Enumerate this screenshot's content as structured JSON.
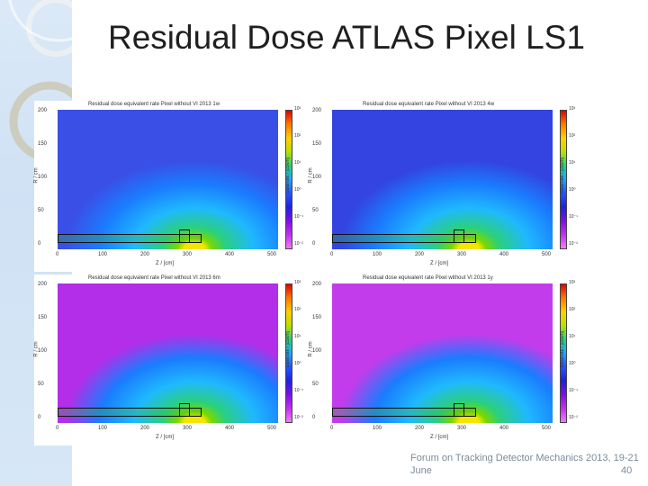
{
  "slide": {
    "title": "Residual Dose ATLAS Pixel LS1",
    "footer": "Forum on Tracking Detector Mechanics 2013, 19-21 June",
    "page_number": "40"
  },
  "plots": [
    {
      "title": "Residual dose equivalent rate Pixel without VI 2013 1w",
      "bg": "#3a4fe6"
    },
    {
      "title": "Residual dose equivalent rate Pixel without VI 2013 4w",
      "bg": "#3344e0"
    },
    {
      "title": "Residual dose equivalent rate Pixel without VI 2013 6m",
      "bg": "#b22ee8"
    },
    {
      "title": "Residual dose equivalent rate Pixel without VI 2013 1y",
      "bg": "#c23ceb"
    }
  ],
  "axes": {
    "y_ticks": [
      "200",
      "150",
      "100",
      "50",
      "0"
    ],
    "x_ticks": [
      "0",
      "100",
      "200",
      "300",
      "400",
      "500"
    ],
    "x_label": "Z / [cm]",
    "y_label": "R / cm",
    "cbar_label": "Doserate / [uSv/h]",
    "cbar_ticks": [
      "10³",
      "10²",
      "10¹",
      "10⁰",
      "10⁻¹",
      "10⁻²"
    ]
  }
}
